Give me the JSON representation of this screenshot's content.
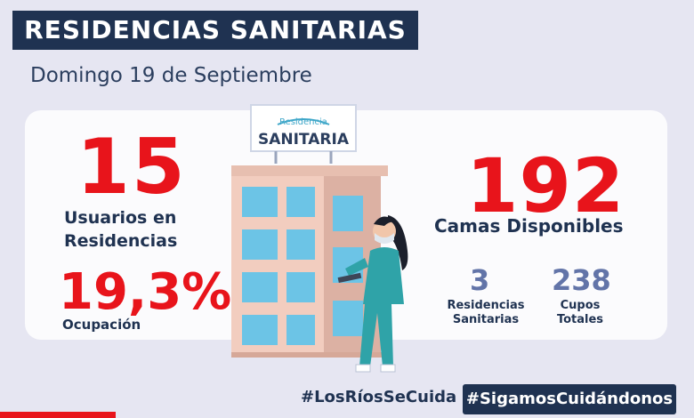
{
  "header": {
    "title": "RESIDENCIAS SANITARIAS",
    "date": "Domingo 19 de Septiembre"
  },
  "left": {
    "users_count": "15",
    "users_label_line1": "Usuarios en",
    "users_label_line2": "Residencias",
    "occupancy": "19,3%",
    "occupancy_label": "Ocupación"
  },
  "right": {
    "beds_available": "192",
    "beds_label": "Camas Disponibles",
    "residences_count": "3",
    "residences_label_line1": "Residencias",
    "residences_label_line2": "Sanitarias",
    "total_slots": "238",
    "total_slots_label_line1": "Cupos",
    "total_slots_label_line2": "Totales"
  },
  "sign": {
    "line1": "Residencia",
    "line2": "SANITARIA"
  },
  "footer": {
    "hashtag1": "#LosRíosSeCuida",
    "hashtag2": "#SigamosCuidándonos"
  },
  "colors": {
    "navy": "#1f3251",
    "red": "#e8141b",
    "stat_blue": "#6274a8",
    "background": "#e6e6f2"
  }
}
